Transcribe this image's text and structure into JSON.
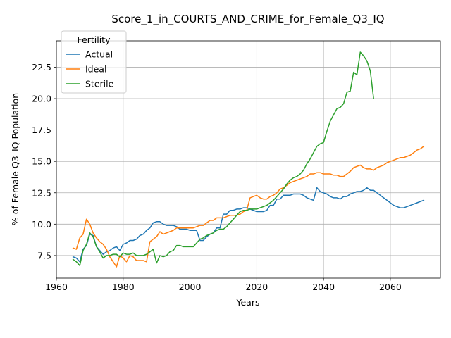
{
  "chart_data": {
    "type": "line",
    "title": "Score_1_in_COURTS_AND_CRIME_for_Female_Q3_IQ",
    "xlabel": "Years",
    "ylabel": "% of Female Q3_IQ Population",
    "xlim": [
      1960,
      2075
    ],
    "ylim": [
      5.7,
      24.6
    ],
    "xticks": [
      1960,
      1980,
      2000,
      2020,
      2040,
      2060
    ],
    "yticks": [
      7.5,
      10.0,
      12.5,
      15.0,
      17.5,
      20.0,
      22.5
    ],
    "ytick_labels": [
      "7.5",
      "10.0",
      "12.5",
      "15.0",
      "17.5",
      "20.0",
      "22.5"
    ],
    "grid": true,
    "legend": {
      "title": "Fertility",
      "position": "top-left"
    },
    "series": [
      {
        "name": "Actual",
        "color": "#1f77b4",
        "x": [
          1965,
          1966,
          1967,
          1968,
          1969,
          1970,
          1971,
          1972,
          1973,
          1974,
          1975,
          1976,
          1977,
          1978,
          1979,
          1980,
          1981,
          1982,
          1983,
          1984,
          1985,
          1986,
          1987,
          1988,
          1989,
          1990,
          1991,
          1992,
          1993,
          1994,
          1995,
          1996,
          1997,
          1998,
          1999,
          2000,
          2001,
          2002,
          2003,
          2004,
          2005,
          2006,
          2007,
          2008,
          2009,
          2010,
          2011,
          2012,
          2013,
          2014,
          2015,
          2016,
          2017,
          2018,
          2019,
          2020,
          2021,
          2022,
          2023,
          2024,
          2025,
          2026,
          2027,
          2028,
          2029,
          2030,
          2031,
          2032,
          2033,
          2034,
          2035,
          2036,
          2037,
          2038,
          2039,
          2040,
          2041,
          2042,
          2043,
          2044,
          2045,
          2046,
          2047,
          2048,
          2049,
          2050,
          2051,
          2052,
          2053,
          2054,
          2055,
          2056,
          2057,
          2058,
          2059,
          2060,
          2061,
          2062,
          2063,
          2064,
          2065,
          2066,
          2067,
          2068,
          2069,
          2070
        ],
        "values": [
          7.4,
          7.3,
          7.0,
          8.0,
          8.3,
          9.2,
          9.1,
          8.2,
          7.9,
          7.6,
          7.8,
          7.9,
          8.1,
          8.2,
          7.9,
          8.4,
          8.5,
          8.7,
          8.7,
          8.8,
          9.1,
          9.2,
          9.5,
          9.7,
          10.1,
          10.2,
          10.2,
          10.0,
          9.9,
          9.9,
          9.9,
          9.8,
          9.6,
          9.6,
          9.6,
          9.5,
          9.5,
          9.5,
          8.7,
          8.7,
          9.0,
          9.2,
          9.3,
          9.7,
          9.7,
          10.8,
          10.8,
          11.1,
          11.1,
          11.2,
          11.2,
          11.3,
          11.3,
          11.2,
          11.1,
          11.0,
          11.0,
          11.0,
          11.1,
          11.5,
          11.5,
          12.0,
          12.0,
          12.3,
          12.3,
          12.3,
          12.4,
          12.4,
          12.4,
          12.3,
          12.1,
          12.0,
          11.9,
          12.9,
          12.6,
          12.5,
          12.4,
          12.2,
          12.1,
          12.1,
          12.0,
          12.2,
          12.2,
          12.4,
          12.5,
          12.6,
          12.6,
          12.7,
          12.9,
          12.7,
          12.7,
          12.5,
          12.3,
          12.1,
          11.9,
          11.7,
          11.5,
          11.4,
          11.3,
          11.3,
          11.4,
          11.5,
          11.6,
          11.7,
          11.8,
          11.9
        ]
      },
      {
        "name": "Ideal",
        "color": "#ff7f0e",
        "x": [
          1965,
          1966,
          1967,
          1968,
          1969,
          1970,
          1971,
          1972,
          1973,
          1974,
          1975,
          1976,
          1977,
          1978,
          1979,
          1980,
          1981,
          1982,
          1983,
          1984,
          1985,
          1986,
          1987,
          1988,
          1989,
          1990,
          1991,
          1992,
          1993,
          1994,
          1995,
          1996,
          1997,
          1998,
          1999,
          2000,
          2001,
          2002,
          2003,
          2004,
          2005,
          2006,
          2007,
          2008,
          2009,
          2010,
          2011,
          2012,
          2013,
          2014,
          2015,
          2016,
          2017,
          2018,
          2019,
          2020,
          2021,
          2022,
          2023,
          2024,
          2025,
          2026,
          2027,
          2028,
          2029,
          2030,
          2031,
          2032,
          2033,
          2034,
          2035,
          2036,
          2037,
          2038,
          2039,
          2040,
          2041,
          2042,
          2043,
          2044,
          2045,
          2046,
          2047,
          2048,
          2049,
          2050,
          2051,
          2052,
          2053,
          2054,
          2055,
          2056,
          2057,
          2058,
          2059,
          2060,
          2061,
          2062,
          2063,
          2064,
          2065,
          2066,
          2067,
          2068,
          2069,
          2070
        ],
        "values": [
          8.1,
          8.0,
          8.9,
          9.2,
          10.4,
          10.0,
          9.3,
          8.9,
          8.6,
          8.4,
          8.0,
          7.4,
          7.0,
          6.6,
          7.5,
          7.3,
          7.0,
          7.5,
          7.4,
          7.1,
          7.1,
          7.1,
          7.0,
          8.6,
          8.8,
          9.0,
          9.4,
          9.2,
          9.3,
          9.4,
          9.5,
          9.7,
          9.7,
          9.7,
          9.7,
          9.7,
          9.7,
          9.8,
          9.9,
          9.9,
          10.1,
          10.3,
          10.3,
          10.5,
          10.5,
          10.5,
          10.6,
          10.7,
          10.7,
          10.7,
          10.8,
          11.0,
          11.1,
          12.1,
          12.2,
          12.3,
          12.1,
          12.0,
          12.0,
          12.2,
          12.3,
          12.5,
          12.8,
          12.9,
          13.1,
          13.3,
          13.4,
          13.5,
          13.6,
          13.7,
          13.8,
          14.0,
          14.0,
          14.1,
          14.1,
          14.0,
          14.0,
          14.0,
          13.9,
          13.9,
          13.8,
          13.8,
          14.0,
          14.2,
          14.5,
          14.6,
          14.7,
          14.5,
          14.4,
          14.4,
          14.3,
          14.5,
          14.6,
          14.7,
          14.9,
          15.0,
          15.1,
          15.2,
          15.3,
          15.3,
          15.4,
          15.5,
          15.7,
          15.9,
          16.0,
          16.2
        ]
      },
      {
        "name": "Sterile",
        "color": "#2ca02c",
        "x": [
          1965,
          1966,
          1967,
          1968,
          1969,
          1970,
          1971,
          1972,
          1973,
          1974,
          1975,
          1976,
          1977,
          1978,
          1979,
          1980,
          1981,
          1982,
          1983,
          1984,
          1985,
          1986,
          1987,
          1988,
          1989,
          1990,
          1991,
          1992,
          1993,
          1994,
          1995,
          1996,
          1997,
          1998,
          1999,
          2000,
          2001,
          2002,
          2003,
          2004,
          2005,
          2006,
          2007,
          2008,
          2009,
          2010,
          2011,
          2012,
          2013,
          2014,
          2015,
          2016,
          2017,
          2018,
          2019,
          2020,
          2021,
          2022,
          2023,
          2024,
          2025,
          2026,
          2027,
          2028,
          2029,
          2030,
          2031,
          2032,
          2033,
          2034,
          2035,
          2036,
          2037,
          2038,
          2039,
          2040,
          2041,
          2042,
          2043,
          2044,
          2045,
          2046,
          2047,
          2048,
          2049,
          2050,
          2051,
          2052,
          2053,
          2054,
          2055
        ],
        "values": [
          7.2,
          7.0,
          6.7,
          7.9,
          8.4,
          9.3,
          9.0,
          8.2,
          7.8,
          7.3,
          7.5,
          7.5,
          7.6,
          7.6,
          7.4,
          7.7,
          7.6,
          7.6,
          7.7,
          7.5,
          7.5,
          7.5,
          7.6,
          7.8,
          8.0,
          6.9,
          7.5,
          7.4,
          7.5,
          7.8,
          7.9,
          8.3,
          8.3,
          8.2,
          8.2,
          8.2,
          8.2,
          8.5,
          8.8,
          8.9,
          9.1,
          9.2,
          9.3,
          9.5,
          9.6,
          9.6,
          9.8,
          10.1,
          10.4,
          10.7,
          11.0,
          11.1,
          11.1,
          11.2,
          11.2,
          11.2,
          11.3,
          11.4,
          11.5,
          11.7,
          11.9,
          12.2,
          12.5,
          12.8,
          13.2,
          13.5,
          13.7,
          13.8,
          14.0,
          14.3,
          14.8,
          15.2,
          15.7,
          16.2,
          16.4,
          16.5,
          17.4,
          18.2,
          18.7,
          19.2,
          19.3,
          19.6,
          20.5,
          20.6,
          22.1,
          21.9,
          23.7,
          23.4,
          23.0,
          22.2,
          20.0
        ]
      }
    ]
  }
}
